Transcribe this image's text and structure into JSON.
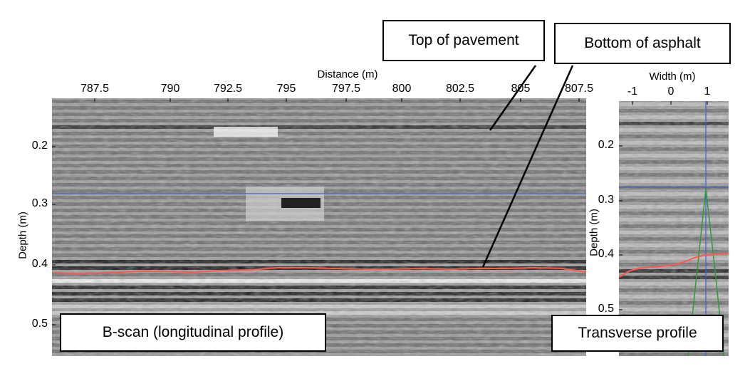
{
  "callouts": {
    "top_of_pavement": "Top of pavement",
    "bottom_of_asphalt": "Bottom of asphalt"
  },
  "bscan": {
    "xlabel": "Distance (m)",
    "ylabel": "Depth (m)",
    "x_ticks": [
      "787.5",
      "790",
      "792.5",
      "795",
      "797.5",
      "800",
      "802.5",
      "805",
      "807.5"
    ],
    "y_ticks": [
      "0.2",
      "0.3",
      "0.4",
      "0.5"
    ],
    "caption": "B-scan (longitudinal profile)"
  },
  "transverse": {
    "xlabel": "Width (m)",
    "ylabel": "Depth (m)",
    "x_ticks": [
      "-1",
      "0",
      "1"
    ],
    "y_ticks": [
      "0.2",
      "0.3",
      "0.4",
      "0.5"
    ],
    "caption": "Transverse profile"
  },
  "colors": {
    "interface_line": "#ff5a50",
    "crosshair": "#3a5fcd",
    "hyperbola": "#2e9a3a"
  }
}
